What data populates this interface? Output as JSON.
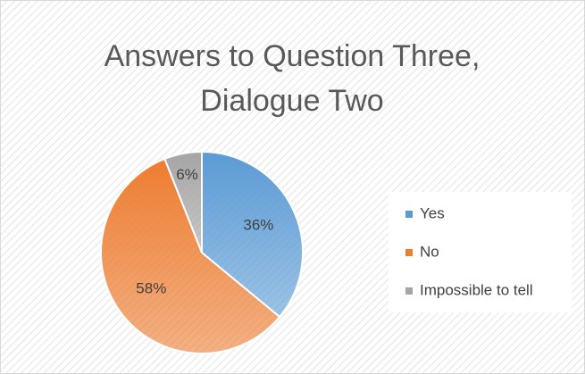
{
  "chart_data": {
    "type": "pie",
    "title": "Answers to Question Three, Dialogue Two",
    "categories": [
      "Yes",
      "No",
      "Impossible to tell"
    ],
    "values": [
      36,
      58,
      6
    ],
    "value_labels": [
      "36%",
      "58%",
      "6%"
    ],
    "colors": [
      "#5b9bd5",
      "#ed7d31",
      "#a5a5a5"
    ],
    "legend": "right"
  }
}
